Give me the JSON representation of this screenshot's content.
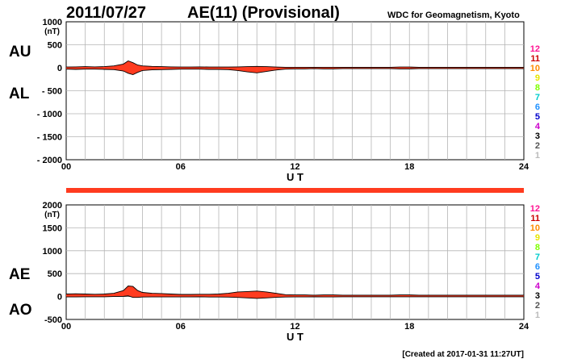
{
  "header": {
    "date": "2011/07/27",
    "title": "AE(11) (Provisional)",
    "org": "WDC for Geomagnetism, Kyoto"
  },
  "footer": {
    "created": "[Created at 2017-01-31 11:27UT]"
  },
  "scale_labels": [
    "12",
    "11",
    "10",
    "9",
    "8",
    "7",
    "6",
    "5",
    "4",
    "3",
    "2",
    "1"
  ],
  "scale_colors": [
    "#ff1493",
    "#cc0000",
    "#ff8c00",
    "#e6e600",
    "#7fff00",
    "#00cccc",
    "#1e90ff",
    "#0000cc",
    "#cc00cc",
    "#000000",
    "#555555",
    "#bbbbbb"
  ],
  "chart_data": [
    {
      "type": "area",
      "series_labels": [
        "AU",
        "AL"
      ],
      "unit": "(nT)",
      "xlabel": "U T",
      "xlim": [
        0,
        24
      ],
      "ylim": [
        -2000,
        1000
      ],
      "y_ticks": [
        1000,
        500,
        0,
        -500,
        -1000,
        -1500,
        -2000
      ],
      "y_tick_labels": [
        "1000",
        "500",
        "0",
        "- 500",
        "- 1000",
        "- 1500",
        "- 2000"
      ],
      "x_ticks": [
        0,
        6,
        12,
        18,
        24
      ],
      "x_tick_labels": [
        "00",
        "06",
        "12",
        "18",
        "24"
      ],
      "grid": true,
      "fill_color": "#ff3b1f",
      "upper": {
        "name": "AU",
        "x": [
          0,
          0.5,
          1,
          1.5,
          2,
          2.5,
          3,
          3.25,
          3.5,
          3.75,
          4,
          4.5,
          5,
          5.5,
          6,
          6.5,
          7,
          7.5,
          8,
          8.5,
          9,
          9.5,
          10,
          10.5,
          11,
          11.5,
          12,
          12.5,
          13,
          13.5,
          14,
          14.5,
          15,
          15.5,
          16,
          16.5,
          17,
          17.5,
          18,
          18.5,
          19,
          19.5,
          20,
          20.5,
          21,
          21.5,
          22,
          22.5,
          23,
          23.5,
          24
        ],
        "y": [
          15,
          20,
          25,
          20,
          25,
          40,
          80,
          150,
          110,
          60,
          40,
          30,
          25,
          20,
          15,
          15,
          20,
          15,
          15,
          15,
          20,
          25,
          30,
          25,
          15,
          10,
          10,
          10,
          10,
          10,
          10,
          10,
          10,
          10,
          10,
          10,
          10,
          15,
          15,
          10,
          10,
          10,
          10,
          10,
          10,
          10,
          10,
          10,
          10,
          10,
          10
        ]
      },
      "lower": {
        "name": "AL",
        "x": [
          0,
          0.5,
          1,
          1.5,
          2,
          2.5,
          3,
          3.25,
          3.5,
          3.75,
          4,
          4.5,
          5,
          5.5,
          6,
          6.5,
          7,
          7.5,
          8,
          8.5,
          9,
          9.5,
          10,
          10.5,
          11,
          11.5,
          12,
          12.5,
          13,
          13.5,
          14,
          14.5,
          15,
          15.5,
          16,
          16.5,
          17,
          17.5,
          18,
          18.5,
          19,
          19.5,
          20,
          20.5,
          21,
          21.5,
          22,
          22.5,
          23,
          23.5,
          24
        ],
        "y": [
          -30,
          -35,
          -30,
          -30,
          -35,
          -40,
          -70,
          -120,
          -150,
          -100,
          -60,
          -45,
          -40,
          -35,
          -30,
          -30,
          -30,
          -35,
          -35,
          -40,
          -60,
          -90,
          -110,
          -80,
          -50,
          -30,
          -25,
          -25,
          -20,
          -25,
          -25,
          -20,
          -20,
          -20,
          -20,
          -20,
          -20,
          -25,
          -25,
          -20,
          -20,
          -20,
          -20,
          -20,
          -20,
          -20,
          -20,
          -20,
          -20,
          -20,
          -20
        ]
      }
    },
    {
      "type": "area",
      "series_labels": [
        "AE",
        "AO"
      ],
      "unit": "(nT)",
      "xlabel": "U T",
      "xlim": [
        0,
        24
      ],
      "ylim": [
        -500,
        2000
      ],
      "y_ticks": [
        2000,
        1500,
        1000,
        500,
        0,
        -500
      ],
      "y_tick_labels": [
        "2000",
        "1500",
        "1000",
        "500",
        "0",
        "-500"
      ],
      "x_ticks": [
        0,
        6,
        12,
        18,
        24
      ],
      "x_tick_labels": [
        "00",
        "06",
        "12",
        "18",
        "24"
      ],
      "grid": true,
      "fill_color": "#ff3b1f",
      "upper": {
        "name": "AE",
        "x": [
          0,
          0.5,
          1,
          1.5,
          2,
          2.5,
          3,
          3.25,
          3.5,
          3.75,
          4,
          4.5,
          5,
          5.5,
          6,
          6.5,
          7,
          7.5,
          8,
          8.5,
          9,
          9.5,
          10,
          10.5,
          11,
          11.5,
          12,
          12.5,
          13,
          13.5,
          14,
          14.5,
          15,
          15.5,
          16,
          16.5,
          17,
          17.5,
          18,
          18.5,
          19,
          19.5,
          20,
          20.5,
          21,
          21.5,
          22,
          22.5,
          23,
          23.5,
          24
        ],
        "y": [
          55,
          60,
          55,
          50,
          55,
          70,
          130,
          230,
          220,
          130,
          90,
          70,
          65,
          55,
          45,
          45,
          50,
          50,
          55,
          70,
          100,
          110,
          120,
          100,
          70,
          40,
          35,
          35,
          30,
          35,
          35,
          30,
          30,
          30,
          30,
          30,
          30,
          35,
          35,
          30,
          30,
          30,
          30,
          30,
          30,
          30,
          30,
          30,
          30,
          30,
          30
        ]
      },
      "lower": {
        "name": "AO",
        "x": [
          0,
          0.5,
          1,
          1.5,
          2,
          2.5,
          3,
          3.25,
          3.5,
          3.75,
          4,
          4.5,
          5,
          5.5,
          6,
          6.5,
          7,
          7.5,
          8,
          8.5,
          9,
          9.5,
          10,
          10.5,
          11,
          11.5,
          12,
          12.5,
          13,
          13.5,
          14,
          14.5,
          15,
          15.5,
          16,
          16.5,
          17,
          17.5,
          18,
          18.5,
          19,
          19.5,
          20,
          20.5,
          21,
          21.5,
          22,
          22.5,
          23,
          23.5,
          24
        ],
        "y": [
          -8,
          -8,
          -5,
          -5,
          -5,
          0,
          5,
          15,
          -20,
          -20,
          -10,
          -8,
          -8,
          -8,
          -8,
          -8,
          -5,
          -10,
          -10,
          -12,
          -20,
          -30,
          -40,
          -30,
          -18,
          -10,
          -8,
          -8,
          -5,
          -8,
          -8,
          -5,
          -5,
          -5,
          -5,
          -5,
          -5,
          -5,
          -5,
          -5,
          -5,
          -5,
          -5,
          -5,
          -5,
          -5,
          -5,
          -5,
          -5,
          -5,
          -5
        ]
      }
    }
  ]
}
